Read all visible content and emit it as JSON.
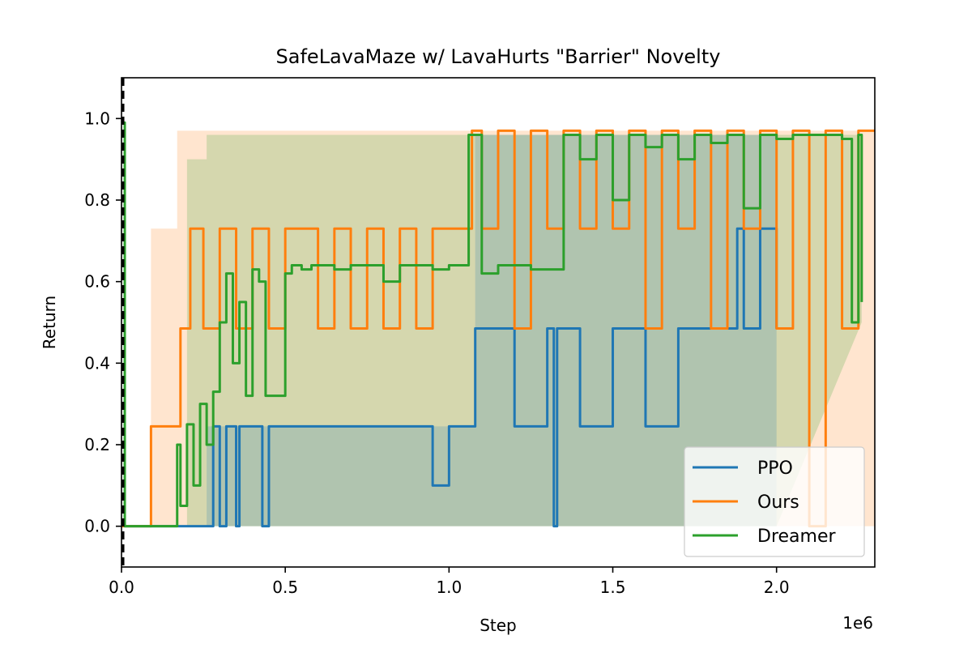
{
  "chart_data": {
    "type": "line",
    "title": "SafeLavaMaze w/ LavaHurts \"Barrier\" Novelty",
    "xlabel": "Step",
    "ylabel": "Return",
    "x_offset_label": "1e6",
    "xlim": [
      0,
      2.3
    ],
    "ylim": [
      -0.1,
      1.1
    ],
    "x_unit_multiplier": 1000000,
    "x_ticks": [
      0.0,
      0.5,
      1.0,
      1.5,
      2.0
    ],
    "x_tick_labels": [
      "0.0",
      "0.5",
      "1.0",
      "1.5",
      "2.0"
    ],
    "y_ticks": [
      0.0,
      0.2,
      0.4,
      0.6,
      0.8,
      1.0
    ],
    "y_tick_labels": [
      "0.0",
      "0.2",
      "0.4",
      "0.6",
      "0.8",
      "1.0"
    ],
    "grid": false,
    "legend_position": "bottom-right",
    "vertical_marker": {
      "x": 0.005,
      "style": "dashed",
      "color": "#000000"
    },
    "series": [
      {
        "name": "PPO",
        "color": "#1f77b4",
        "x": [
          0.0,
          0.24,
          0.25,
          0.27,
          0.28,
          0.29,
          0.3,
          0.32,
          0.33,
          0.35,
          0.36,
          0.4,
          0.43,
          0.45,
          0.46,
          0.7,
          0.75,
          0.8,
          0.85,
          0.9,
          0.95,
          1.0,
          1.07,
          1.08,
          1.1,
          1.2,
          1.3,
          1.32,
          1.33,
          1.34,
          1.4,
          1.5,
          1.6,
          1.7,
          1.8,
          1.85,
          1.88,
          1.9,
          1.95,
          2.0
        ],
        "y": [
          0.0,
          0.0,
          0.0,
          0.0,
          0.245,
          0.245,
          0.0,
          0.245,
          0.245,
          0.0,
          0.245,
          0.245,
          0.0,
          0.245,
          0.245,
          0.245,
          0.245,
          0.245,
          0.245,
          0.245,
          0.1,
          0.245,
          0.245,
          0.485,
          0.485,
          0.245,
          0.485,
          0.0,
          0.485,
          0.485,
          0.245,
          0.485,
          0.245,
          0.485,
          0.485,
          0.485,
          0.73,
          0.485,
          0.73,
          0.485
        ]
      },
      {
        "name": "Ours",
        "color": "#ff7f0e",
        "x": [
          0.0,
          0.08,
          0.09,
          0.15,
          0.18,
          0.2,
          0.21,
          0.22,
          0.25,
          0.3,
          0.35,
          0.4,
          0.45,
          0.5,
          0.55,
          0.6,
          0.65,
          0.7,
          0.75,
          0.8,
          0.85,
          0.9,
          0.95,
          1.0,
          1.05,
          1.07,
          1.1,
          1.15,
          1.2,
          1.25,
          1.3,
          1.35,
          1.4,
          1.45,
          1.5,
          1.55,
          1.6,
          1.65,
          1.7,
          1.75,
          1.8,
          1.85,
          1.9,
          1.95,
          2.0,
          2.05,
          2.1,
          2.15,
          2.2,
          2.25,
          2.3
        ],
        "y": [
          0.0,
          0.0,
          0.245,
          0.245,
          0.485,
          0.485,
          0.73,
          0.73,
          0.485,
          0.73,
          0.485,
          0.73,
          0.485,
          0.73,
          0.73,
          0.485,
          0.73,
          0.485,
          0.73,
          0.485,
          0.73,
          0.485,
          0.73,
          0.73,
          0.73,
          0.97,
          0.73,
          0.97,
          0.485,
          0.97,
          0.73,
          0.97,
          0.73,
          0.97,
          0.73,
          0.97,
          0.485,
          0.97,
          0.73,
          0.97,
          0.485,
          0.97,
          0.73,
          0.97,
          0.485,
          0.97,
          0.0,
          0.97,
          0.485,
          0.97,
          0.97
        ]
      },
      {
        "name": "Dreamer",
        "color": "#2ca02c",
        "x": [
          0.0,
          0.005,
          0.01,
          0.02,
          0.15,
          0.17,
          0.18,
          0.2,
          0.22,
          0.24,
          0.26,
          0.28,
          0.3,
          0.32,
          0.34,
          0.36,
          0.38,
          0.4,
          0.42,
          0.44,
          0.46,
          0.48,
          0.5,
          0.52,
          0.55,
          0.58,
          0.6,
          0.65,
          0.7,
          0.75,
          0.8,
          0.85,
          0.9,
          0.95,
          1.0,
          1.05,
          1.06,
          1.08,
          1.1,
          1.15,
          1.2,
          1.25,
          1.3,
          1.35,
          1.4,
          1.45,
          1.5,
          1.55,
          1.6,
          1.65,
          1.7,
          1.75,
          1.8,
          1.85,
          1.9,
          1.95,
          2.0,
          2.05,
          2.1,
          2.15,
          2.2,
          2.23,
          2.25,
          2.26
        ],
        "y": [
          0.99,
          0.99,
          0.0,
          0.0,
          0.0,
          0.2,
          0.05,
          0.25,
          0.1,
          0.3,
          0.2,
          0.33,
          0.5,
          0.62,
          0.4,
          0.55,
          0.32,
          0.63,
          0.6,
          0.32,
          0.32,
          0.32,
          0.62,
          0.64,
          0.63,
          0.64,
          0.64,
          0.63,
          0.64,
          0.64,
          0.6,
          0.64,
          0.64,
          0.63,
          0.64,
          0.64,
          0.96,
          0.96,
          0.62,
          0.64,
          0.64,
          0.63,
          0.63,
          0.96,
          0.9,
          0.96,
          0.8,
          0.96,
          0.93,
          0.96,
          0.9,
          0.96,
          0.94,
          0.96,
          0.78,
          0.96,
          0.95,
          0.96,
          0.96,
          0.96,
          0.95,
          0.5,
          0.96,
          0.55
        ]
      }
    ],
    "bands": [
      {
        "series": "Ours",
        "x": [
          0.09,
          0.16,
          0.17,
          0.2,
          1.0,
          1.07,
          2.3
        ],
        "upper": [
          0.73,
          0.73,
          0.97,
          0.97,
          0.97,
          0.97,
          0.97
        ],
        "lower": [
          0.0,
          0.0,
          0.0,
          0.0,
          0.0,
          0.0,
          0.0
        ]
      },
      {
        "series": "Dreamer",
        "x": [
          0.2,
          0.26,
          1.07,
          1.37,
          2.0,
          2.26
        ],
        "upper": [
          0.9,
          0.96,
          0.96,
          0.96,
          0.96,
          0.96
        ],
        "lower": [
          0.0,
          0.0,
          0.0,
          0.0,
          0.0,
          0.5
        ]
      },
      {
        "series": "PPO",
        "x": [
          0.26,
          1.07,
          1.08,
          1.95,
          2.0
        ],
        "upper": [
          0.245,
          0.245,
          0.96,
          0.96,
          0.73
        ],
        "lower": [
          0.0,
          0.0,
          0.0,
          0.0,
          0.0
        ]
      }
    ]
  }
}
